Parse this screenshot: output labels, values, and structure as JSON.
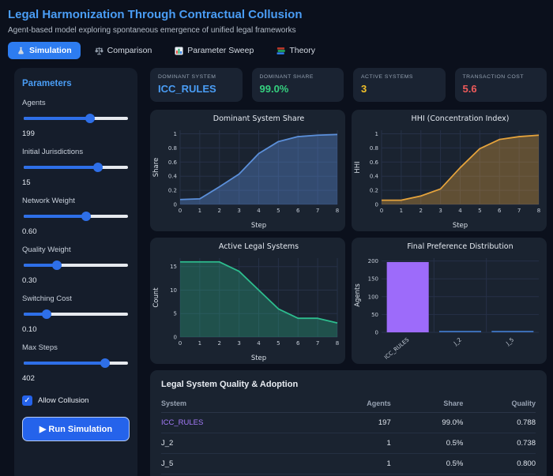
{
  "header": {
    "title": "Legal Harmonization Through Contractual Collusion",
    "subtitle": "Agent-based model exploring spontaneous emergence of unified legal frameworks"
  },
  "tabs": [
    {
      "label": "Simulation",
      "icon": "flask-icon",
      "active": true
    },
    {
      "label": "Comparison",
      "icon": "scales-icon",
      "active": false
    },
    {
      "label": "Parameter Sweep",
      "icon": "bar-chart-icon",
      "active": false
    },
    {
      "label": "Theory",
      "icon": "books-icon",
      "active": false
    }
  ],
  "sidebar": {
    "title": "Parameters",
    "sliders": [
      {
        "label": "Agents",
        "value": "199",
        "pct": 64
      },
      {
        "label": "Initial Jurisdictions",
        "value": "15",
        "pct": 71
      },
      {
        "label": "Network Weight",
        "value": "0.60",
        "pct": 60
      },
      {
        "label": "Quality Weight",
        "value": "0.30",
        "pct": 32
      },
      {
        "label": "Switching Cost",
        "value": "0.10",
        "pct": 22
      },
      {
        "label": "Max Steps",
        "value": "402",
        "pct": 78
      }
    ],
    "checkbox": {
      "label": "Allow Collusion",
      "checked": true,
      "check_glyph": "✓"
    },
    "run_button": "▶ Run Simulation"
  },
  "stats": [
    {
      "label": "DOMINANT SYSTEM",
      "value": "ICC_RULES",
      "color": "#4a9df5"
    },
    {
      "label": "DOMINANT SHARE",
      "value": "99.0%",
      "color": "#35d07f"
    },
    {
      "label": "ACTIVE SYSTEMS",
      "value": "3",
      "color": "#f2c029"
    },
    {
      "label": "TRANSACTION COST",
      "value": "5.6",
      "color": "#ee5a5a"
    }
  ],
  "chart_data": [
    {
      "type": "area",
      "title": "Dominant System Share",
      "xlabel": "Step",
      "ylabel": "Share",
      "x": [
        0,
        1,
        2,
        3,
        4,
        5,
        6,
        7,
        8
      ],
      "values": [
        0.07,
        0.08,
        0.25,
        0.43,
        0.72,
        0.89,
        0.96,
        0.98,
        0.99
      ],
      "ylim": [
        0,
        1.05
      ],
      "yticks": [
        0,
        0.2,
        0.4,
        0.6,
        0.8,
        1
      ],
      "line_color": "#5b8fd9",
      "fill_color": "rgba(91,143,217,0.38)",
      "grid": true,
      "legend": "none"
    },
    {
      "type": "area",
      "title": "HHI (Concentration Index)",
      "xlabel": "Step",
      "ylabel": "HHI",
      "x": [
        0,
        1,
        2,
        3,
        4,
        5,
        6,
        7,
        8
      ],
      "values": [
        0.06,
        0.06,
        0.12,
        0.22,
        0.52,
        0.79,
        0.92,
        0.96,
        0.98
      ],
      "ylim": [
        0,
        1.05
      ],
      "yticks": [
        0,
        0.2,
        0.4,
        0.6,
        0.8,
        1
      ],
      "line_color": "#e5a33c",
      "fill_color": "rgba(229,163,60,0.35)",
      "grid": true,
      "legend": "none"
    },
    {
      "type": "area",
      "title": "Active Legal Systems",
      "xlabel": "Step",
      "ylabel": "Count",
      "x": [
        0,
        1,
        2,
        3,
        4,
        5,
        6,
        7,
        8
      ],
      "values": [
        16,
        16,
        16,
        14,
        10,
        6,
        4,
        4,
        3
      ],
      "ylim": [
        0,
        16.8
      ],
      "yticks": [
        0,
        5,
        10,
        15
      ],
      "line_color": "#2dbd8e",
      "fill_color": "rgba(45,189,142,0.30)",
      "grid": true,
      "legend": "none"
    },
    {
      "type": "bar",
      "title": "Final Preference Distribution",
      "xlabel": "",
      "ylabel": "Agents",
      "categories": [
        "ICC_RULES",
        "J_2",
        "J_5"
      ],
      "values": [
        197,
        1,
        1
      ],
      "ylim": [
        0,
        208
      ],
      "yticks": [
        0,
        50,
        100,
        150,
        200
      ],
      "bar_colors": [
        "#9d6bfa",
        "#3b6db4",
        "#3b6db4"
      ],
      "grid": true,
      "legend": "none"
    }
  ],
  "table": {
    "title": "Legal System Quality & Adoption",
    "columns": [
      "System",
      "Agents",
      "Share",
      "Quality"
    ],
    "rows": [
      {
        "system": "ICC_RULES",
        "system_color": "#a57bfa",
        "agents": "197",
        "share": "99.0%",
        "quality": "0.788"
      },
      {
        "system": "J_2",
        "system_color": "#dfe5ed",
        "agents": "1",
        "share": "0.5%",
        "quality": "0.738"
      },
      {
        "system": "J_5",
        "system_color": "#dfe5ed",
        "agents": "1",
        "share": "0.5%",
        "quality": "0.800"
      }
    ]
  }
}
